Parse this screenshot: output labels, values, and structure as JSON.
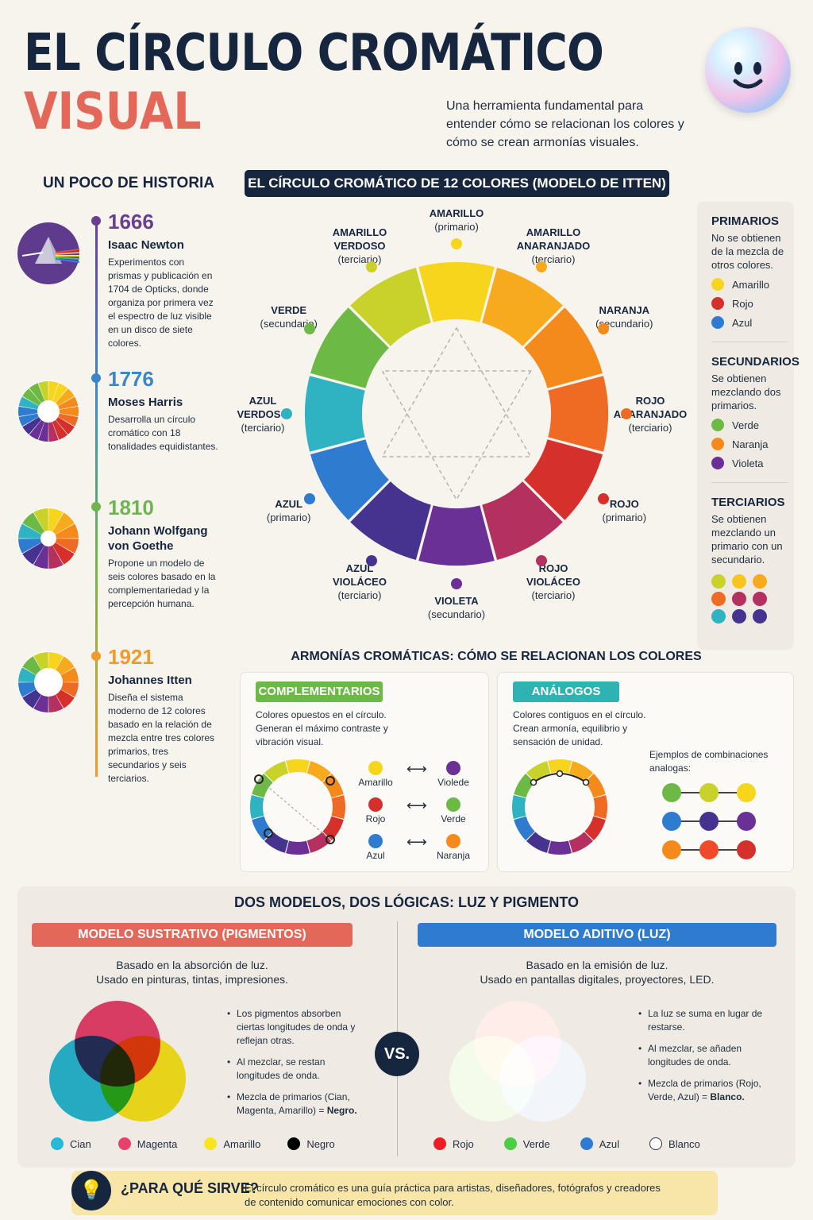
{
  "header": {
    "title_line1": "EL CÍRCULO CROMÁTICO",
    "title_line2": "VISUAL",
    "subtitle": "Una herramienta fundamental para entender cómo se relacionan los colores y cómo se crean armonías visuales."
  },
  "history": {
    "title": "UN POCO DE HISTORIA",
    "items": [
      {
        "year": "1666",
        "name": "Isaac Newton",
        "desc": "Experimentos con prismas y publicación en 1704 de Opticks, donde organiza por primera vez el espectro de luz visible en un disco de siete colores.",
        "color": "#6b3d93"
      },
      {
        "year": "1776",
        "name": "Moses Harris",
        "desc": "Desarrolla un círculo cromático con 18 tonalidades equidistantes.",
        "color": "#3b86c7"
      },
      {
        "year": "1810",
        "name": "Johann Wolfgang von Goethe",
        "desc": "Propone un modelo de seis colores basado en la complementariedad y la percepción humana.",
        "color": "#6bb74d"
      },
      {
        "year": "1921",
        "name": "Johannes Itten",
        "desc": "Diseña el sistema moderno de 12 colores basado en la relación de mezcla entre tres colores primarios, tres secundarios y seis terciarios.",
        "color": "#ef9a2d"
      }
    ]
  },
  "wheel": {
    "title": "EL CÍRCULO CROMÁTICO DE 12 COLORES (MODELO DE ITTEN)",
    "labels": [
      {
        "name": "AMARILLO",
        "type": "(primario)"
      },
      {
        "name": "AMARILLO ANARANJADO",
        "type": "(terciario)"
      },
      {
        "name": "NARANJA",
        "type": "(secundario)"
      },
      {
        "name": "ROJO ANARANJADO",
        "type": "(terciario)"
      },
      {
        "name": "ROJO",
        "type": "(primario)"
      },
      {
        "name": "ROJO VIOLÁCEO",
        "type": "(terciario)"
      },
      {
        "name": "VIOLETA",
        "type": "(secundario)"
      },
      {
        "name": "AZUL VIOLÁCEO",
        "type": "(terciario)"
      },
      {
        "name": "AZUL",
        "type": "(primario)"
      },
      {
        "name": "AZUL VERDOSO",
        "type": "(terciario)"
      },
      {
        "name": "VERDE",
        "type": "(secundario)"
      },
      {
        "name": "AMARILLO VERDOSO",
        "type": "(terciario)"
      }
    ],
    "colors": [
      "#f7d51d",
      "#f7aa1d",
      "#f58a1c",
      "#ef6a23",
      "#d6302c",
      "#b3305f",
      "#6a3096",
      "#45338f",
      "#2e7bd0",
      "#2fb3c2",
      "#6cba45",
      "#c9d22a"
    ]
  },
  "legend": {
    "primary": {
      "title": "PRIMARIOS",
      "desc": "No se obtienen de la mezcla de otros colores.",
      "items": [
        {
          "label": "Amarillo",
          "color": "#f7d51d"
        },
        {
          "label": "Rojo",
          "color": "#d6302c"
        },
        {
          "label": "Azul",
          "color": "#2e7bd0"
        }
      ]
    },
    "secondary": {
      "title": "SECUNDARIOS",
      "desc": "Se obtienen mezclando dos primarios.",
      "items": [
        {
          "label": "Verde",
          "color": "#6cba45"
        },
        {
          "label": "Naranja",
          "color": "#f58a1c"
        },
        {
          "label": "Violeta",
          "color": "#6a3096"
        }
      ]
    },
    "tertiary": {
      "title": "TERCIARIOS",
      "desc": "Se obtienen mezclando un primario con un secundario.",
      "colors": [
        "#c9d22a",
        "#f7c51d",
        "#f7aa1d",
        "#ef6a23",
        "#b3305f",
        "#b3305f",
        "#2fb3c2",
        "#45338f",
        "#45338f"
      ]
    }
  },
  "harmonies": {
    "title": "ARMONÍAS CROMÁTICAS: CÓMO SE RELACIONAN LOS COLORES",
    "complementary": {
      "tag": "COMPLEMENTARIOS",
      "desc": "Colores opuestos en el círculo. Generan el máximo contraste y vibración visual.",
      "pairs": [
        {
          "a": "Amarillo",
          "a_color": "#f7d51d",
          "b": "Violede",
          "b_color": "#6a3096"
        },
        {
          "a": "Rojo",
          "a_color": "#d6302c",
          "b": "Verde",
          "b_color": "#6cba45"
        },
        {
          "a": "Azul",
          "a_color": "#2e7bd0",
          "b": "Naranja",
          "b_color": "#f58a1c"
        }
      ]
    },
    "analogous": {
      "tag": "ANÁLOGOS",
      "desc": "Colores contiguos en el círculo. Crean armonía, equilibrio y sensación de unidad.",
      "examples_title": "Ejemplos de combinaciones analogas:",
      "rows": [
        [
          "#6cba45",
          "#c9d22a",
          "#f7d51d"
        ],
        [
          "#2e7bd0",
          "#45338f",
          "#6a3096"
        ],
        [
          "#f58a1c",
          "#ef4a2a",
          "#d6302c"
        ]
      ]
    }
  },
  "models": {
    "title": "DOS MODELOS, DOS LÓGICAS: LUZ Y PIGMENTO",
    "vs": "VS.",
    "subtractive": {
      "title": "MODELO SUSTRATIVO (PIGMENTOS)",
      "desc1": "Basado en la absorción de luz.",
      "desc2": "Usado en pinturas, tintas, impresiones.",
      "bullets": [
        "Los pigmentos absorben ciertas longitudes de onda y reflejan otras.",
        "Al mezclar, se restan longitudes de onda."
      ],
      "mix_lead": "Mezcla de primarios (Cian, Magenta, Amarillo) = ",
      "mix_result": "Negro.",
      "legend": [
        {
          "label": "Cian",
          "color": "#27b9d8"
        },
        {
          "label": "Magenta",
          "color": "#e8416e"
        },
        {
          "label": "Amarillo",
          "color": "#f7e51d"
        },
        {
          "label": "Negro",
          "color": "#000000"
        }
      ]
    },
    "additive": {
      "title": "MODELO ADITIVO (LUZ)",
      "desc1": "Basado en la emisión de luz.",
      "desc2": "Usado en pantallas digitales, proyectores, LED.",
      "bullets": [
        "La luz se suma en lugar de restarse.",
        "Al mezclar, se añaden longitudes de onda."
      ],
      "mix_lead": "Mezcla de primarios (Rojo, Verde, Azul) = ",
      "mix_result": "Blanco.",
      "legend": [
        {
          "label": "Rojo",
          "color": "#ee1d23"
        },
        {
          "label": "Verde",
          "color": "#4ccd46"
        },
        {
          "label": "Azul",
          "color": "#2e7bd0"
        },
        {
          "label": "Blanco",
          "color": "#ffffff"
        }
      ]
    }
  },
  "footer": {
    "question": "¿PARA QUÉ SIRVE?",
    "text": "El círculo cromático es una guía práctica para artistas, diseñadores, fotógrafos y creadores de contenido comunicar emociones con color."
  }
}
